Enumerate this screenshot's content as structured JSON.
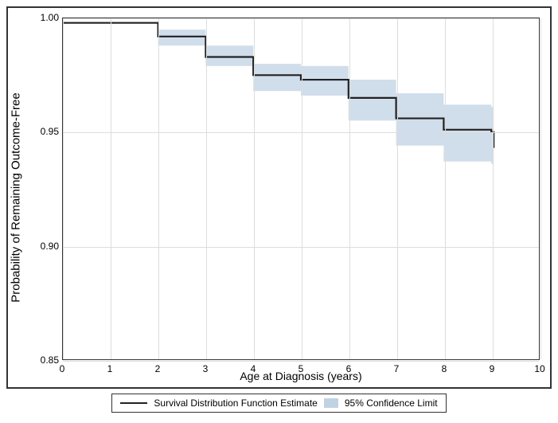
{
  "chart": {
    "type": "survival-step",
    "ylabel": "Probability of Remaining Outcome-Free",
    "xlabel": "Age at Diagnosis (years)",
    "xlim": [
      0,
      10
    ],
    "ylim": [
      0.85,
      1.0
    ],
    "xticks": [
      0,
      1,
      2,
      3,
      4,
      5,
      6,
      7,
      8,
      9,
      10
    ],
    "yticks": [
      0.85,
      0.9,
      0.95,
      1.0
    ],
    "ytick_labels": [
      "0.85",
      "0.90",
      "0.95",
      "1.00"
    ],
    "grid_color": "#dddddd",
    "background": "#ffffff",
    "line_color": "#222222",
    "ci_color": "rgba(150,180,210,0.45)",
    "title_fontsize": 15,
    "tick_fontsize": 12,
    "series": {
      "x": [
        0,
        1,
        2,
        3,
        4,
        5,
        6,
        7,
        8,
        9,
        9.05
      ],
      "est": [
        0.998,
        0.998,
        0.992,
        0.983,
        0.975,
        0.973,
        0.965,
        0.956,
        0.951,
        0.95,
        0.943
      ],
      "lower": [
        0.998,
        0.998,
        0.988,
        0.979,
        0.968,
        0.966,
        0.955,
        0.944,
        0.937,
        0.936,
        0.925
      ],
      "upper": [
        0.998,
        0.998,
        0.995,
        0.988,
        0.98,
        0.979,
        0.973,
        0.967,
        0.962,
        0.961,
        0.961
      ]
    },
    "legend": {
      "line_label": "Survival Distribution Function Estimate",
      "ci_label": "95% Confidence Limit"
    }
  }
}
